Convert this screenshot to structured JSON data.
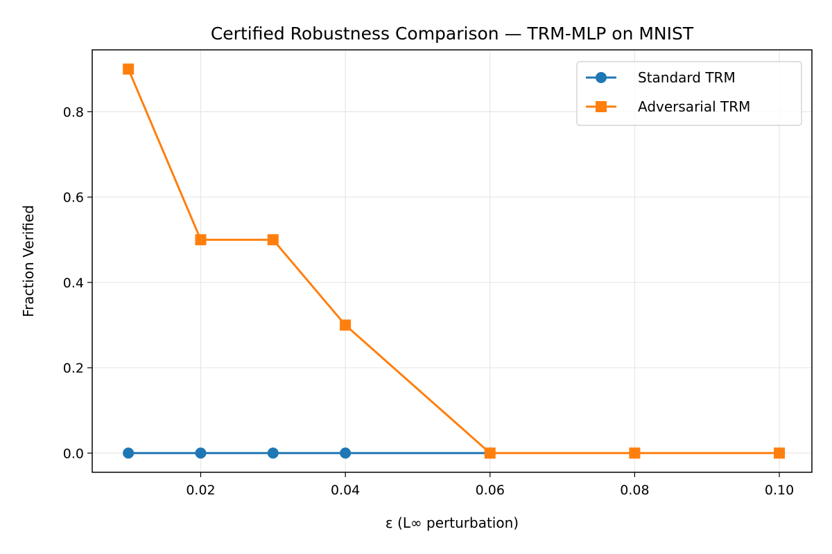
{
  "chart_data": {
    "type": "line",
    "title": "Certified Robustness Comparison — TRM-MLP on MNIST",
    "xlabel": "ε (L∞ perturbation)",
    "ylabel": "Fraction Verified",
    "xlim": [
      0.005,
      0.1045
    ],
    "ylim": [
      -0.045,
      0.945
    ],
    "xticks": [
      0.02,
      0.04,
      0.06,
      0.08,
      0.1
    ],
    "xtick_labels": [
      "0.02",
      "0.04",
      "0.06",
      "0.08",
      "0.10"
    ],
    "yticks": [
      0.0,
      0.2,
      0.4,
      0.6,
      0.8
    ],
    "ytick_labels": [
      "0.0",
      "0.2",
      "0.4",
      "0.6",
      "0.8"
    ],
    "grid": true,
    "legend_position": "top-right",
    "series": [
      {
        "name": "Standard TRM",
        "color": "#1f77b4",
        "marker": "circle",
        "x": [
          0.01,
          0.02,
          0.03,
          0.04,
          0.06
        ],
        "y": [
          0.0,
          0.0,
          0.0,
          0.0,
          0.0
        ]
      },
      {
        "name": "Adversarial TRM",
        "color": "#ff7f0e",
        "marker": "square",
        "x": [
          0.01,
          0.02,
          0.03,
          0.04,
          0.06,
          0.08,
          0.1
        ],
        "y": [
          0.9,
          0.5,
          0.5,
          0.3,
          0.0,
          0.0,
          0.0
        ]
      }
    ]
  }
}
